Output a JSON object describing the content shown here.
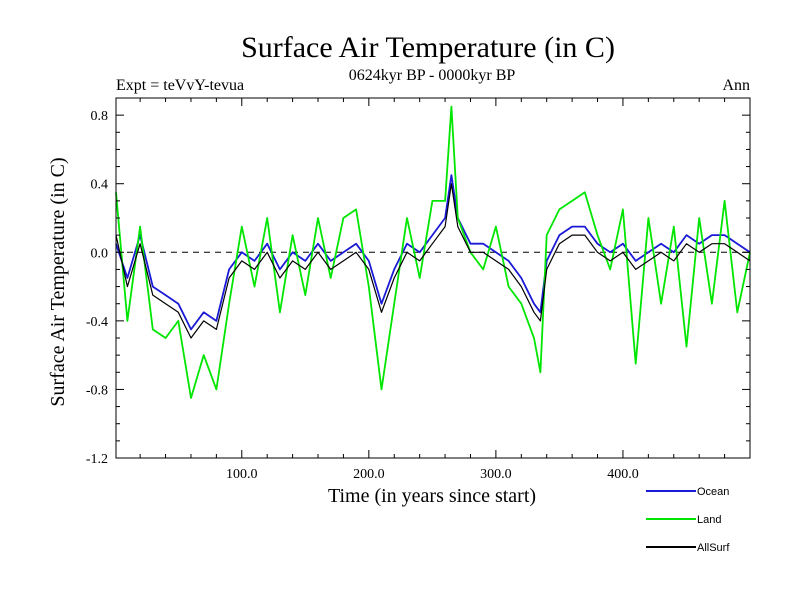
{
  "chart_data": {
    "type": "line",
    "title": "Surface Air Temperature (in C)",
    "subtitle_left": "Expt = teVvY-tevua",
    "subtitle_center": "0624kyr BP - 0000kyr BP",
    "subtitle_right": "Ann",
    "xlabel": "Time (in years since start)",
    "ylabel": "Surface Air Temperature (in C)",
    "xlim": [
      1,
      500
    ],
    "ylim": [
      -1.2,
      0.9
    ],
    "x_ticks": [
      100,
      200,
      300,
      400
    ],
    "x_tick_labels": [
      "100.0",
      "200.0",
      "300.0",
      "400.0"
    ],
    "y_ticks": [
      -1.2,
      -0.8,
      -0.4,
      0.0,
      0.4,
      0.8
    ],
    "y_tick_labels": [
      "-1.2",
      "-0.8",
      "-0.4",
      "0.0",
      "0.4",
      "0.8"
    ],
    "zero_line": "dashed",
    "x": [
      1,
      10,
      20,
      30,
      40,
      50,
      60,
      70,
      80,
      90,
      100,
      110,
      120,
      130,
      140,
      150,
      160,
      170,
      180,
      190,
      200,
      210,
      220,
      230,
      240,
      250,
      260,
      265,
      270,
      280,
      290,
      300,
      310,
      320,
      330,
      335,
      340,
      350,
      360,
      370,
      380,
      390,
      400,
      410,
      420,
      430,
      440,
      450,
      460,
      470,
      480,
      490,
      500
    ],
    "series": [
      {
        "name": "Ocean",
        "color": "#1a1ad6",
        "values": [
          0.05,
          -0.15,
          0.1,
          -0.2,
          -0.25,
          -0.3,
          -0.45,
          -0.35,
          -0.4,
          -0.1,
          0.0,
          -0.05,
          0.05,
          -0.1,
          0.0,
          -0.05,
          0.05,
          -0.05,
          0.0,
          0.05,
          -0.05,
          -0.3,
          -0.1,
          0.05,
          0.0,
          0.1,
          0.2,
          0.45,
          0.2,
          0.05,
          0.05,
          0.0,
          -0.05,
          -0.15,
          -0.3,
          -0.35,
          -0.05,
          0.1,
          0.15,
          0.15,
          0.05,
          0.0,
          0.05,
          -0.05,
          0.0,
          0.05,
          0.0,
          0.1,
          0.05,
          0.1,
          0.1,
          0.05,
          0.0
        ]
      },
      {
        "name": "Land",
        "color": "#00e600",
        "values": [
          0.35,
          -0.4,
          0.15,
          -0.45,
          -0.5,
          -0.4,
          -0.85,
          -0.6,
          -0.8,
          -0.3,
          0.15,
          -0.2,
          0.2,
          -0.35,
          0.1,
          -0.25,
          0.2,
          -0.15,
          0.2,
          0.25,
          -0.2,
          -0.8,
          -0.3,
          0.2,
          -0.15,
          0.3,
          0.3,
          0.85,
          0.2,
          0.0,
          -0.1,
          0.15,
          -0.2,
          -0.3,
          -0.5,
          -0.7,
          0.1,
          0.25,
          0.3,
          0.35,
          0.1,
          -0.1,
          0.25,
          -0.65,
          0.2,
          -0.3,
          0.15,
          -0.55,
          0.2,
          -0.3,
          0.3,
          -0.35,
          0.0
        ]
      },
      {
        "name": "AllSurf",
        "color": "#000000",
        "values": [
          0.1,
          -0.2,
          0.05,
          -0.25,
          -0.3,
          -0.35,
          -0.5,
          -0.4,
          -0.45,
          -0.15,
          -0.05,
          -0.1,
          0.0,
          -0.15,
          -0.05,
          -0.1,
          0.0,
          -0.1,
          -0.05,
          0.0,
          -0.1,
          -0.35,
          -0.15,
          0.0,
          -0.05,
          0.05,
          0.15,
          0.4,
          0.15,
          0.0,
          0.0,
          -0.05,
          -0.1,
          -0.2,
          -0.35,
          -0.4,
          -0.1,
          0.05,
          0.1,
          0.1,
          0.0,
          -0.05,
          0.0,
          -0.1,
          -0.05,
          0.0,
          -0.05,
          0.05,
          0.0,
          0.05,
          0.05,
          0.0,
          -0.05
        ]
      }
    ]
  }
}
